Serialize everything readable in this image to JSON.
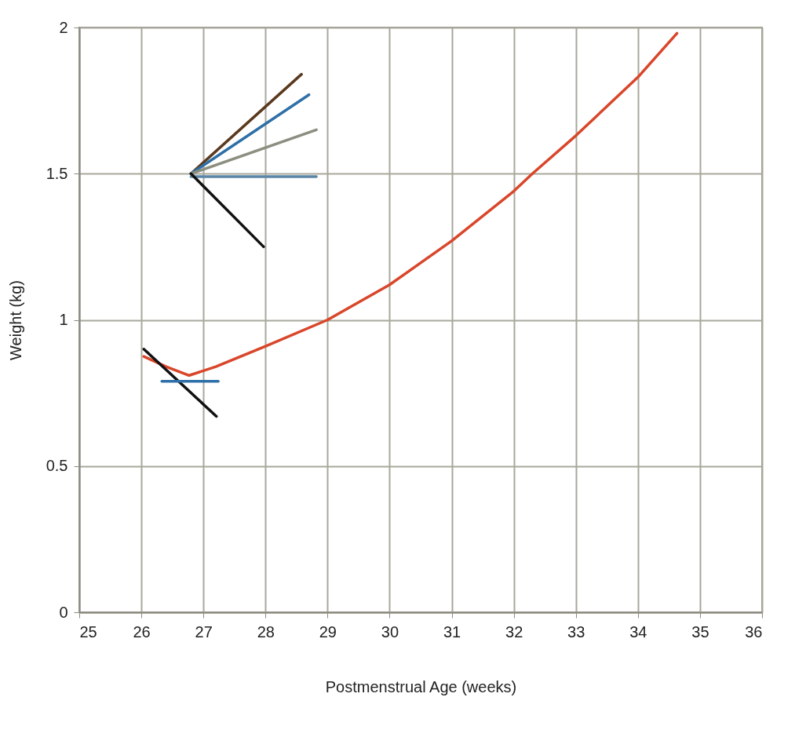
{
  "chart_data": {
    "type": "line",
    "xlabel": "Postmenstrual Age (weeks)",
    "ylabel": "Weight (kg)",
    "xlim": [
      25,
      36
    ],
    "xticks": [
      25,
      26,
      27,
      28,
      29,
      30,
      31,
      32,
      33,
      34,
      35,
      36
    ],
    "ylim": [
      0,
      2
    ],
    "yticks": [
      0,
      0.5,
      1,
      1.5,
      2
    ],
    "grid": true,
    "legend": false,
    "marker": "none",
    "line_style": "solid",
    "series": [
      {
        "color": "#d9462a",
        "x": [
          26.04,
          26.4,
          26.77,
          27.2,
          28,
          29,
          30,
          31,
          32,
          32.3,
          33,
          34,
          34.63
        ],
        "values": [
          0.875,
          0.84,
          0.81,
          0.84,
          0.91,
          1.0,
          1.12,
          1.27,
          1.44,
          1.5,
          1.63,
          1.83,
          1.98
        ]
      },
      {
        "color": "#5a3a1e",
        "x": [
          26.8,
          28.58
        ],
        "values": [
          1.5,
          1.84
        ]
      },
      {
        "color": "#2e6fa8",
        "x": [
          26.8,
          28.7
        ],
        "values": [
          1.5,
          1.77
        ]
      },
      {
        "color": "#8a8f80",
        "x": [
          26.8,
          28.82
        ],
        "values": [
          1.5,
          1.65
        ]
      },
      {
        "color": "#5b86a8",
        "x": [
          26.8,
          28.82
        ],
        "values": [
          1.49,
          1.49
        ]
      },
      {
        "color": "#111111",
        "x": [
          26.8,
          27.97
        ],
        "values": [
          1.5,
          1.25
        ]
      },
      {
        "color": "#111111",
        "x": [
          26.04,
          27.21
        ],
        "values": [
          0.9,
          0.67
        ]
      },
      {
        "color": "#2e6fa8",
        "x": [
          26.33,
          27.24
        ],
        "values": [
          0.79,
          0.79
        ]
      }
    ]
  }
}
